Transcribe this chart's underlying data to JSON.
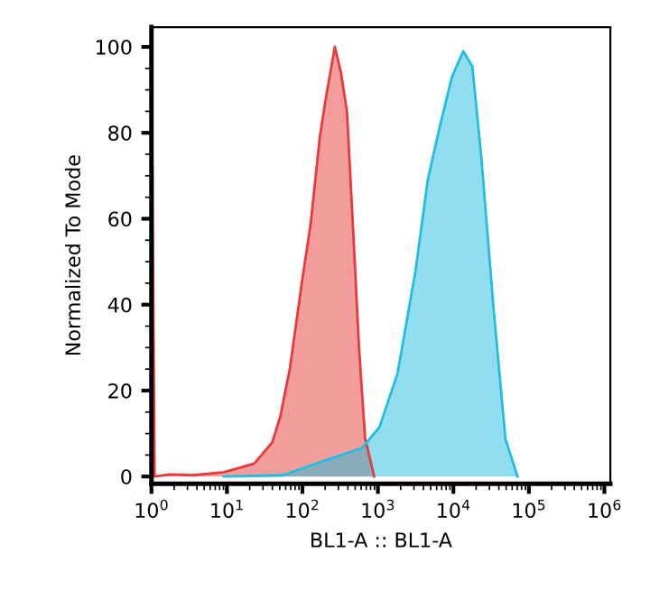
{
  "chart_data": {
    "type": "area",
    "xlabel": "BL1-A :: BL1-A",
    "ylabel": "Normalized To Mode",
    "log": "x",
    "grid": false,
    "legend": false,
    "xlim": [
      1,
      1200000
    ],
    "ylim": [
      -1.7,
      104.6
    ],
    "xticks": [
      {
        "value": 1,
        "label": "10$^{0}$"
      },
      {
        "value": 10,
        "label": "10$^{1}$"
      },
      {
        "value": 100,
        "label": "10$^{2}$"
      },
      {
        "value": 1000,
        "label": "10$^{3}$"
      },
      {
        "value": 10000,
        "label": "10$^{4}$"
      },
      {
        "value": 100000,
        "label": "10$^{5}$"
      },
      {
        "value": 1000000,
        "label": "10$^{6}$"
      }
    ],
    "yticks": [
      0,
      20,
      40,
      60,
      80,
      100
    ],
    "series": [
      {
        "color": "#e83a3a",
        "x": [
          1,
          1.1,
          1.78,
          3.6,
          9.1,
          23,
          40,
          51,
          68,
          98,
          129,
          170,
          204,
          269,
          324,
          389,
          468,
          562,
          676,
          891
        ],
        "values": [
          100,
          0,
          0.5,
          0.3,
          1,
          3,
          8,
          14,
          25,
          45,
          59,
          79,
          88,
          100,
          94,
          85,
          58,
          30,
          9,
          0
        ]
      },
      {
        "color": "#22bde0",
        "x": [
          9.1,
          56,
          204,
          617,
          1050,
          1820,
          3160,
          4570,
          6610,
          9550,
          13500,
          17800,
          23400,
          33900,
          49000,
          70800
        ],
        "values": [
          0,
          0.3,
          3.8,
          6.6,
          11.5,
          24,
          48,
          69,
          81.5,
          93,
          99,
          95.5,
          74.5,
          39.5,
          8.7,
          0
        ]
      }
    ]
  }
}
